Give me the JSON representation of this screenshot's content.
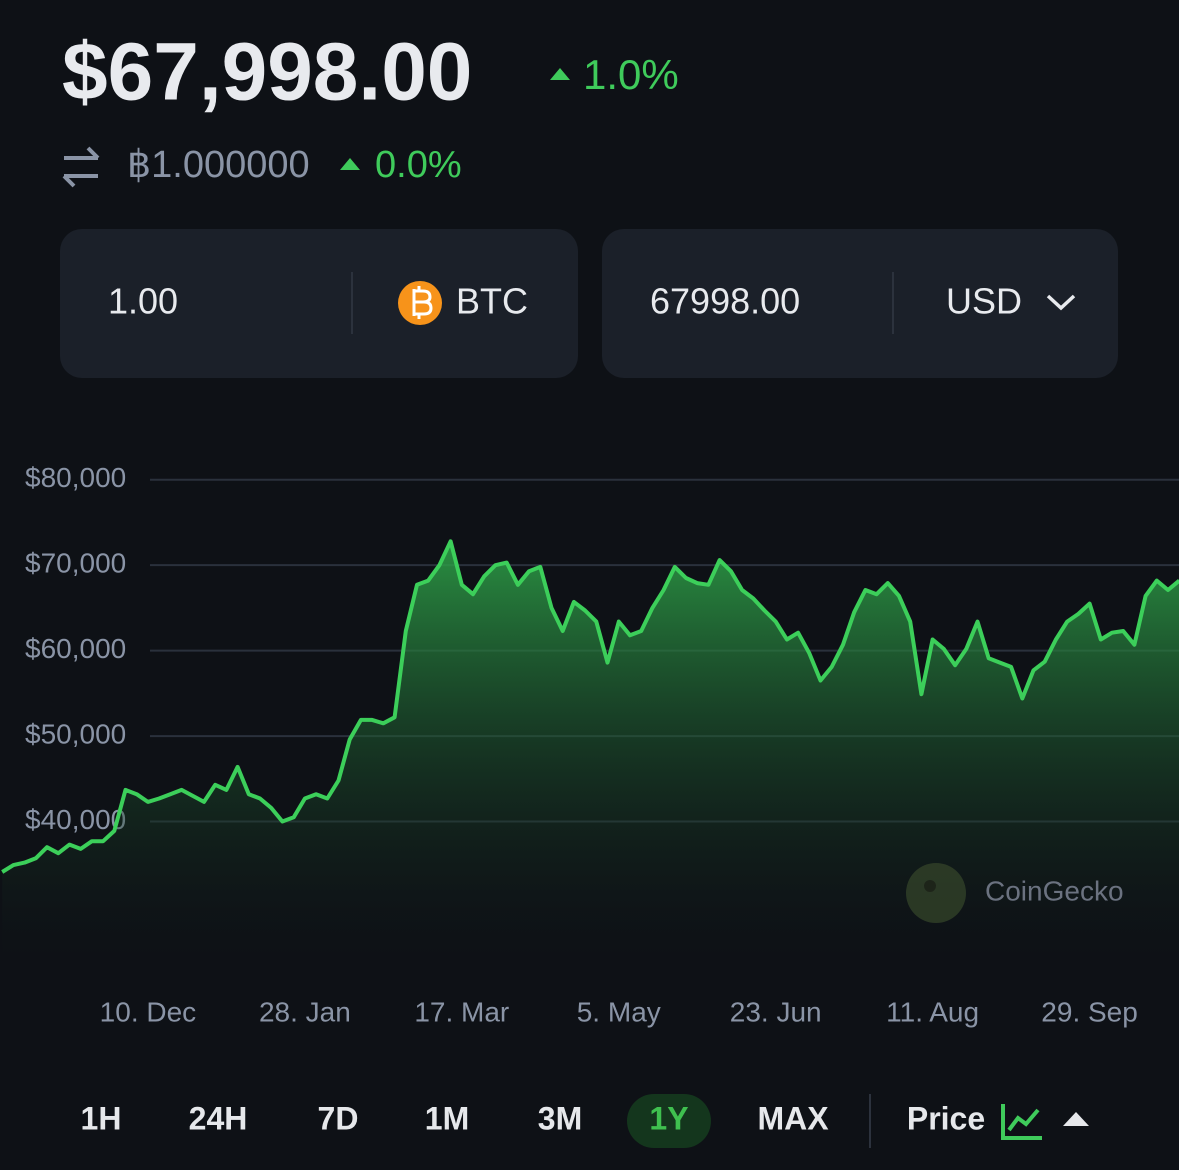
{
  "header": {
    "price": "$67,998.00",
    "change": "1.0%",
    "btc_price": "฿1.000000",
    "btc_change": "0.0%"
  },
  "converter": {
    "from_amount": "1.00",
    "from_currency": "BTC",
    "to_amount": "67998.00",
    "to_currency": "USD"
  },
  "chart_data": {
    "type": "area",
    "categories": [
      null,
      null,
      null,
      null,
      null,
      null,
      null,
      null,
      null,
      null,
      null,
      null,
      null,
      "10. Dec",
      null,
      null,
      null,
      null,
      null,
      null,
      null,
      null,
      null,
      null,
      null,
      null,
      null,
      "28. Jan",
      null,
      null,
      null,
      null,
      null,
      null,
      null,
      null,
      null,
      null,
      null,
      null,
      null,
      "17. Mar",
      null,
      null,
      null,
      null,
      null,
      null,
      null,
      null,
      null,
      null,
      null,
      null,
      null,
      "5. May",
      null,
      null,
      null,
      null,
      null,
      null,
      null,
      null,
      null,
      null,
      null,
      null,
      null,
      "23. Jun",
      null,
      null,
      null,
      null,
      null,
      null,
      null,
      null,
      null,
      null,
      null,
      null,
      null,
      "11. Aug",
      null,
      null,
      null,
      null,
      null,
      null,
      null,
      null,
      null,
      null,
      null,
      null,
      null,
      "29. Sep",
      null,
      null,
      null,
      null,
      null,
      null,
      null,
      null
    ],
    "values": [
      34100,
      34900,
      35200,
      35700,
      37000,
      36300,
      37300,
      36800,
      37700,
      37700,
      38900,
      43700,
      43200,
      42300,
      42700,
      43200,
      43700,
      43000,
      42300,
      44300,
      43700,
      46400,
      43200,
      42700,
      41600,
      40000,
      40500,
      42700,
      43200,
      42700,
      44800,
      49600,
      51900,
      51900,
      51500,
      52200,
      62300,
      67700,
      68200,
      70000,
      72800,
      67700,
      66600,
      68700,
      70000,
      70300,
      67700,
      69300,
      69800,
      65000,
      62300,
      65700,
      64700,
      63400,
      58600,
      63400,
      61800,
      62300,
      65000,
      67100,
      69800,
      68500,
      67900,
      67700,
      70600,
      69300,
      67100,
      66100,
      64700,
      63400,
      61300,
      62100,
      59700,
      56500,
      58100,
      60700,
      64500,
      67100,
      66600,
      67900,
      66400,
      63400,
      54900,
      61300,
      60200,
      58300,
      60200,
      63400,
      59100,
      58600,
      58100,
      54400,
      57700,
      58700,
      61300,
      63400,
      64300,
      65500,
      61300,
      62100,
      62300,
      60700,
      66400,
      68200,
      67100,
      68200
    ],
    "color": "#3ccf5a",
    "ylim": [
      30000,
      85000
    ],
    "yticks": [
      {
        "value": 40000,
        "label": "$40,000"
      },
      {
        "value": 50000,
        "label": "$50,000"
      },
      {
        "value": 60000,
        "label": "$60,000"
      },
      {
        "value": 70000,
        "label": "$70,000"
      },
      {
        "value": 80000,
        "label": "$80,000"
      }
    ],
    "grid": true
  },
  "watermark": "CoinGecko",
  "ranges": [
    "1H",
    "24H",
    "7D",
    "1M",
    "3M",
    "1Y",
    "MAX"
  ],
  "selected_range": "1Y",
  "metric": "Price"
}
